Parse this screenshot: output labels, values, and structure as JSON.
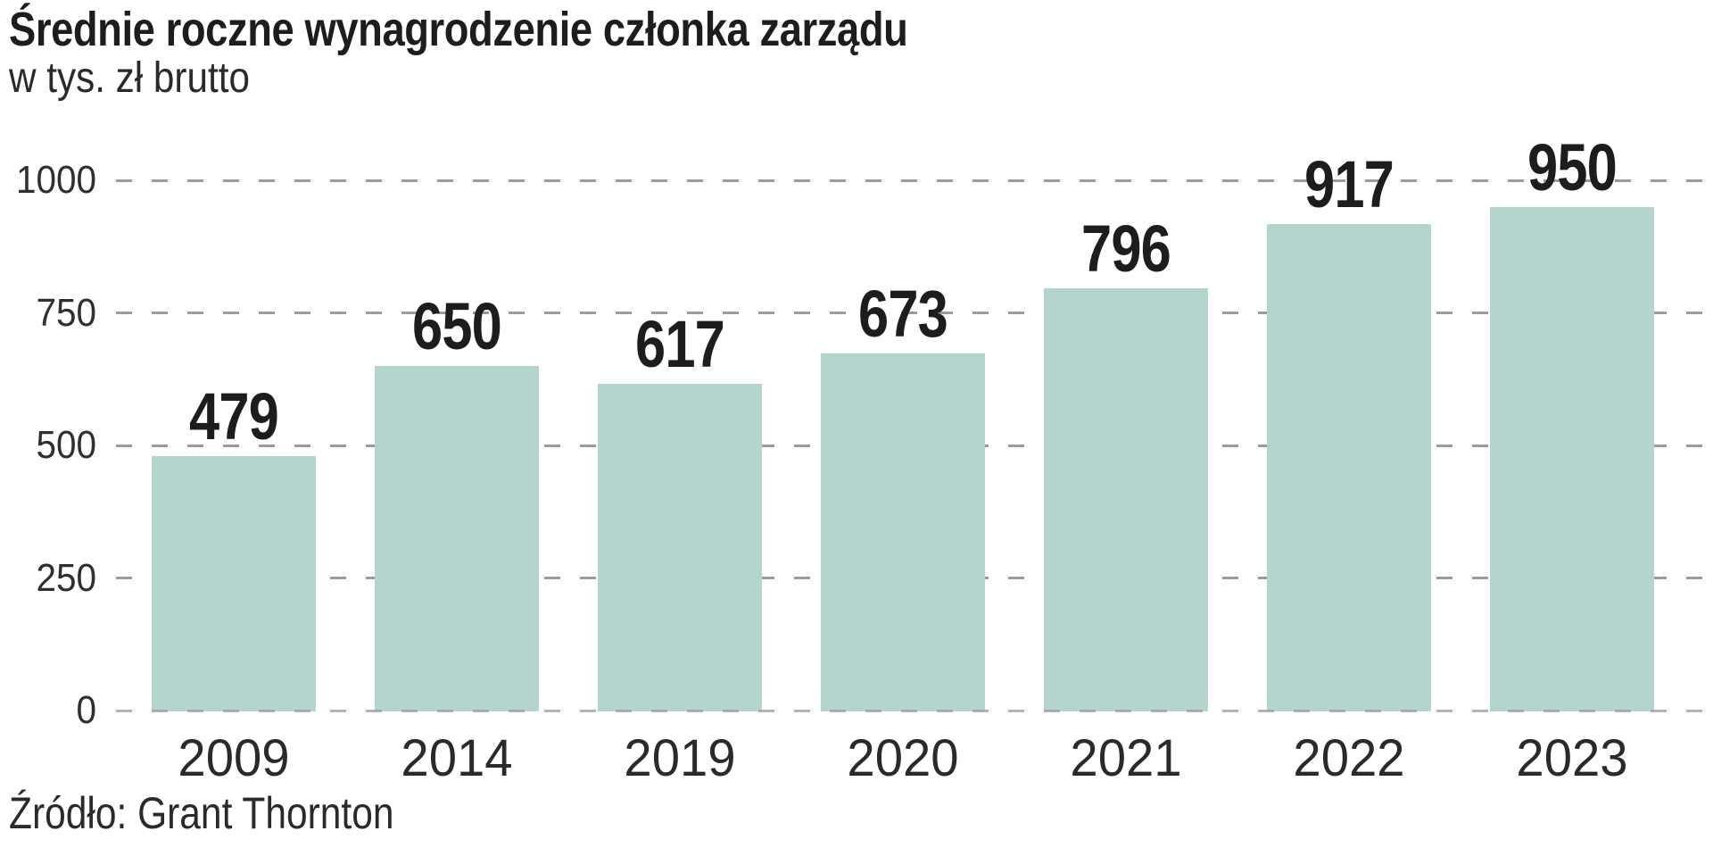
{
  "header": {
    "title": "Średnie roczne wynagrodzenie członka zarządu",
    "subtitle": "w tys. zł brutto"
  },
  "chart_data": {
    "type": "bar",
    "title": "Średnie roczne wynagrodzenie członka zarządu",
    "subtitle": "w tys. zł brutto",
    "categories": [
      "2009",
      "2014",
      "2019",
      "2020",
      "2021",
      "2022",
      "2023"
    ],
    "values": [
      479,
      650,
      617,
      673,
      796,
      917,
      950
    ],
    "xlabel": "",
    "ylabel": "w tys. zł brutto",
    "ylim": [
      0,
      1000
    ],
    "yticks": [
      0,
      250,
      500,
      750,
      1000
    ],
    "grid": "horizontal-dashed",
    "legend": "none",
    "bar_color": "#b4d5ce",
    "value_label_color": "#1d1d1b",
    "gridline_color": "#9b9b9b"
  },
  "footer": {
    "source": "Źródło: Grant Thornton"
  }
}
